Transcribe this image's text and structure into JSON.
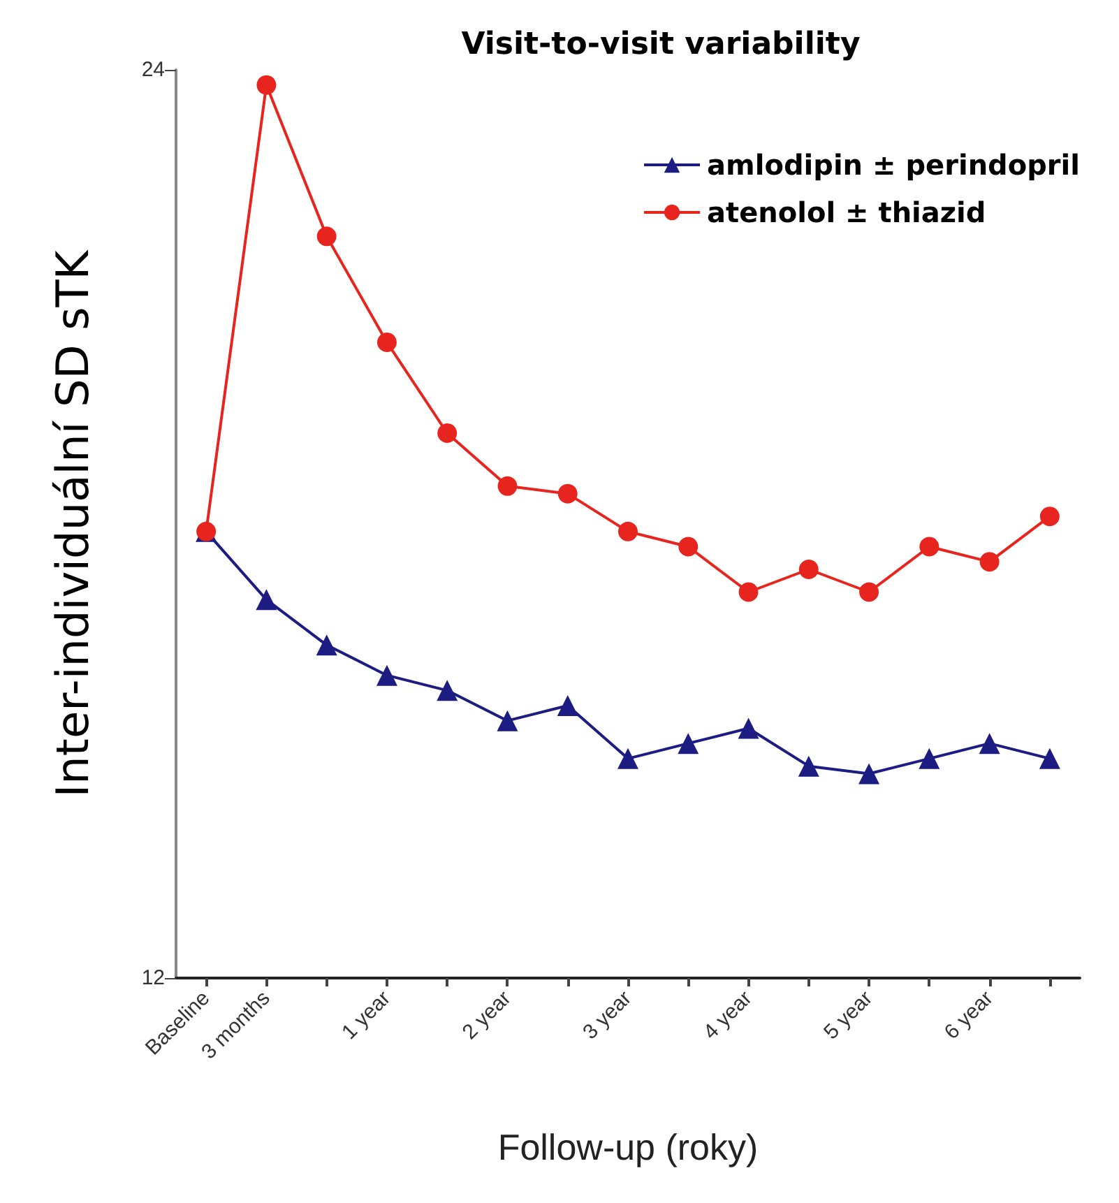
{
  "chart_data": {
    "type": "line",
    "title": "Visit-to-visit variability",
    "xlabel": "Follow-up (roky)",
    "ylabel": "Inter-individuální SD sTK",
    "categories": [
      "Baseline",
      "3 months",
      null,
      "1 year",
      null,
      "2 year",
      null,
      "3 year",
      null,
      "4 year",
      null,
      "5 year",
      null,
      "6 year",
      null
    ],
    "series": [
      {
        "name": "amlodipin ± perindopril",
        "color": "#1c1c82",
        "marker": "triangle",
        "values": [
          17.9,
          17.0,
          16.4,
          16.0,
          15.8,
          15.4,
          15.6,
          14.9,
          15.1,
          15.3,
          14.8,
          14.7,
          14.9,
          15.1,
          14.9
        ]
      },
      {
        "name": "atenolol ± thiazid",
        "color": "#e8241e",
        "marker": "circle",
        "values": [
          17.9,
          23.8,
          21.8,
          20.4,
          19.2,
          18.5,
          18.4,
          17.9,
          17.7,
          17.1,
          17.4,
          17.1,
          17.7,
          17.5,
          18.1
        ]
      }
    ],
    "ylim": [
      12,
      24
    ],
    "yticks": [
      12,
      24
    ],
    "grid": false,
    "legend": "top right"
  }
}
